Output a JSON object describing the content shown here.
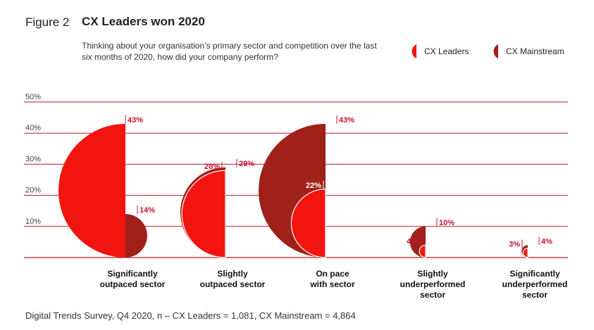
{
  "figure_label": "Figure 2",
  "title": "CX Leaders won 2020",
  "subtitle": "Thinking about your organisation’s primary sector and competition over the last six months of 2020, how did your company perform?",
  "footer": "Digital Trends Survey, Q4 2020, n – CX Leaders = 1,081, CX Mainstream = 4,864",
  "colors": {
    "leaders": "#f2150f",
    "mainstream": "#a0201a",
    "grid": "#b01e24",
    "label": "#c8102e"
  },
  "chart_data": {
    "type": "bar",
    "ylim": [
      0,
      50
    ],
    "yticks": [
      "10%",
      "20%",
      "30%",
      "40%",
      "50%"
    ],
    "ytick_values": [
      10,
      20,
      30,
      40,
      50
    ],
    "grid": true,
    "legend_position": "top-right",
    "categories": [
      [
        "Significantly",
        "outpaced sector"
      ],
      [
        "Slightly",
        "outpaced sector"
      ],
      [
        "On pace",
        "with sector"
      ],
      [
        "Slightly",
        "underperformed",
        "sector"
      ],
      [
        "Significantly",
        "underperformed",
        "sector"
      ]
    ],
    "series": [
      {
        "name": "CX Leaders",
        "values": [
          43,
          28,
          22,
          4,
          3
        ],
        "labels": [
          "43%",
          "28%",
          "22%",
          "4%",
          "3%"
        ]
      },
      {
        "name": "CX Mainstream",
        "values": [
          14,
          29,
          43,
          10,
          4
        ],
        "labels": [
          "14%",
          "29%",
          "43%",
          "10%",
          "4%"
        ]
      }
    ]
  }
}
